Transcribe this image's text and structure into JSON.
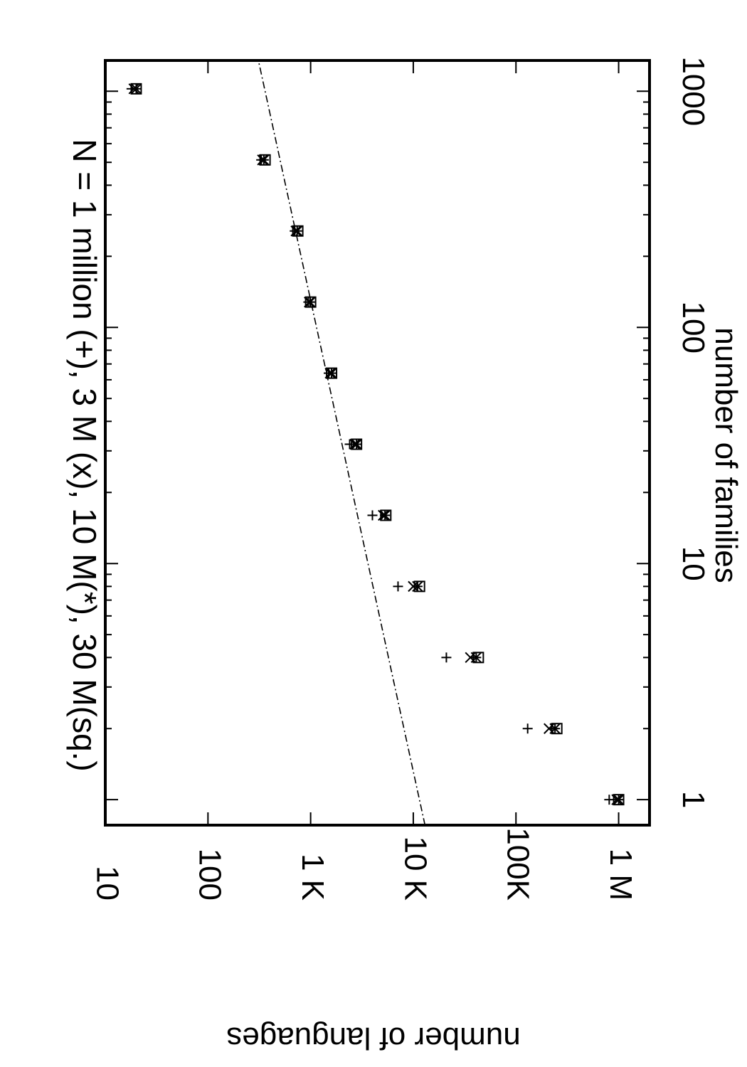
{
  "chart_data": {
    "type": "scatter",
    "title": "N = 1 million (+), 3 M (x), 10 M(*), 30 M(sq.)",
    "xlabel": "number of families",
    "ylabel": "number of languages",
    "x_scale": "log",
    "y_scale": "log",
    "xlim": [
      0.78,
      1350
    ],
    "ylim": [
      10,
      2000000
    ],
    "x_ticks": [
      {
        "value": 1,
        "label": "1"
      },
      {
        "value": 10,
        "label": "10"
      },
      {
        "value": 100,
        "label": "100"
      },
      {
        "value": 1000,
        "label": "1000"
      }
    ],
    "y_ticks": [
      {
        "value": 10,
        "label": "10"
      },
      {
        "value": 100,
        "label": "100"
      },
      {
        "value": 1000,
        "label": "1 K"
      },
      {
        "value": 10000,
        "label": "10 K"
      },
      {
        "value": 100000,
        "label": "100K"
      },
      {
        "value": 1000000,
        "label": "1 M"
      }
    ],
    "grid": false,
    "legend": "none",
    "series": [
      {
        "marker": "plus",
        "points": [
          {
            "x": 1,
            "y": 810000
          },
          {
            "x": 2,
            "y": 130000
          },
          {
            "x": 4,
            "y": 21000
          },
          {
            "x": 8,
            "y": 7100
          },
          {
            "x": 16,
            "y": 4000
          },
          {
            "x": 32,
            "y": 2400
          },
          {
            "x": 64,
            "y": 1500
          },
          {
            "x": 128,
            "y": 950
          },
          {
            "x": 256,
            "y": 700
          },
          {
            "x": 512,
            "y": 330
          },
          {
            "x": 1024,
            "y": 18
          }
        ]
      },
      {
        "marker": "cross",
        "points": [
          {
            "x": 1,
            "y": 960000
          },
          {
            "x": 2,
            "y": 210000
          },
          {
            "x": 4,
            "y": 36000
          },
          {
            "x": 8,
            "y": 10000
          },
          {
            "x": 16,
            "y": 5100
          },
          {
            "x": 32,
            "y": 2700
          },
          {
            "x": 64,
            "y": 1550
          },
          {
            "x": 128,
            "y": 970
          },
          {
            "x": 256,
            "y": 720
          },
          {
            "x": 512,
            "y": 340
          },
          {
            "x": 1024,
            "y": 19
          }
        ]
      },
      {
        "marker": "star",
        "points": [
          {
            "x": 1,
            "y": 1000000
          },
          {
            "x": 2,
            "y": 240000
          },
          {
            "x": 4,
            "y": 41000
          },
          {
            "x": 8,
            "y": 11000
          },
          {
            "x": 16,
            "y": 5300
          },
          {
            "x": 32,
            "y": 2800
          },
          {
            "x": 64,
            "y": 1600
          },
          {
            "x": 128,
            "y": 990
          },
          {
            "x": 256,
            "y": 740
          },
          {
            "x": 512,
            "y": 350
          },
          {
            "x": 1024,
            "y": 20
          }
        ]
      },
      {
        "marker": "square",
        "points": [
          {
            "x": 1,
            "y": 1000000
          },
          {
            "x": 2,
            "y": 250000
          },
          {
            "x": 4,
            "y": 43000
          },
          {
            "x": 8,
            "y": 11500
          },
          {
            "x": 16,
            "y": 5400
          },
          {
            "x": 32,
            "y": 2800
          },
          {
            "x": 64,
            "y": 1600
          },
          {
            "x": 128,
            "y": 1000
          },
          {
            "x": 256,
            "y": 750
          },
          {
            "x": 512,
            "y": 360
          },
          {
            "x": 1024,
            "y": 20
          }
        ]
      }
    ],
    "reference_line": {
      "style": "dash-dot",
      "points": [
        {
          "x": 0.78,
          "y": 13000
        },
        {
          "x": 1350,
          "y": 310
        }
      ]
    }
  }
}
